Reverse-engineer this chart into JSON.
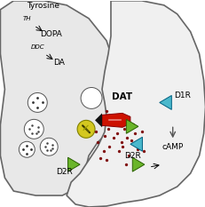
{
  "pre_color": "#e8e8e8",
  "post_color": "#f0f0f0",
  "edge_color": "#666666",
  "dot_color": "#7a0000",
  "green_color": "#6ab52a",
  "cyan_color": "#4ab8cc",
  "red_color": "#cc1100",
  "yellow_color": "#d4c820",
  "black": "#111111",
  "white": "#ffffff",
  "text_tyrosine": "Tyrosine",
  "text_th": "TH",
  "text_dopa": "DOPA",
  "text_ddc": "DDC",
  "text_da": "DA",
  "text_dat": "DAT",
  "text_d1r": "D1R",
  "text_d2r": "D2R",
  "text_camp": "cAMP"
}
